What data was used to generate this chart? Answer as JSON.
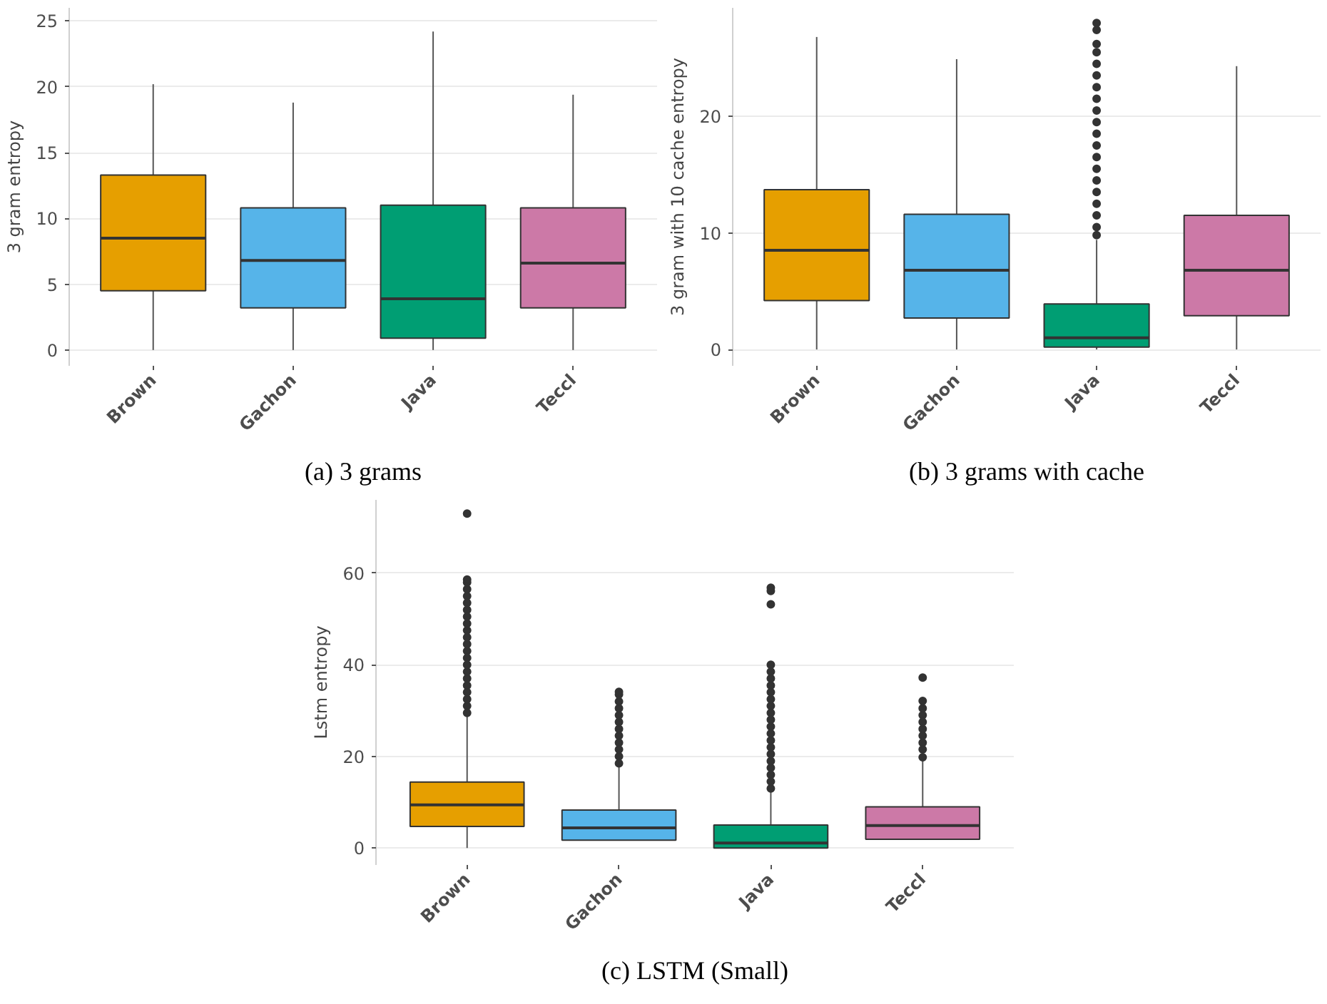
{
  "chart_data": [
    {
      "type": "box",
      "categories": [
        "Brown",
        "Gachon",
        "Java",
        "Teccl"
      ],
      "colors": [
        "#e69f00",
        "#56b4e9",
        "#009e73",
        "#cc79a7"
      ],
      "ylabel": "3 gram entropy",
      "ylim": [
        -1.2,
        26
      ],
      "yticks": [
        0,
        5,
        10,
        15,
        20,
        25
      ],
      "grid": "y",
      "annotations": [
        "(a) 3 grams"
      ],
      "boxes": [
        {
          "low": 0,
          "q1": 4.5,
          "median": 8.5,
          "q3": 13.3,
          "high": 20.2
        },
        {
          "low": 0,
          "q1": 3.2,
          "median": 6.8,
          "q3": 10.8,
          "high": 18.8
        },
        {
          "low": 0,
          "q1": 0.9,
          "median": 3.9,
          "q3": 11.0,
          "high": 24.2
        },
        {
          "low": 0,
          "q1": 3.2,
          "median": 6.6,
          "q3": 10.8,
          "high": 19.4
        }
      ]
    },
    {
      "type": "box",
      "categories": [
        "Brown",
        "Gachon",
        "Java",
        "Teccl"
      ],
      "colors": [
        "#e69f00",
        "#56b4e9",
        "#009e73",
        "#cc79a7"
      ],
      "ylabel": "3 gram with 10 cache entropy",
      "ylim": [
        -1.4,
        29.3
      ],
      "yticks": [
        0,
        10,
        20
      ],
      "grid": "y",
      "annotations": [
        "(b) 3 grams with cache"
      ],
      "boxes": [
        {
          "low": 0,
          "q1": 4.2,
          "median": 8.5,
          "q3": 13.7,
          "high": 26.8
        },
        {
          "low": 0,
          "q1": 2.7,
          "median": 6.8,
          "q3": 11.6,
          "high": 24.9
        },
        {
          "low": 0,
          "q1": 0.2,
          "median": 1.0,
          "q3": 3.9,
          "high": 9.4,
          "outliers": [
            9.8,
            10.5,
            11.5,
            12.5,
            13.5,
            14.5,
            15.5,
            16.5,
            17.5,
            18.5,
            19.5,
            20.5,
            21.5,
            22.5,
            23.5,
            24.5,
            25.5,
            26.2,
            27.4,
            28.0
          ]
        },
        {
          "low": 0,
          "q1": 2.9,
          "median": 6.8,
          "q3": 11.5,
          "high": 24.3
        }
      ]
    },
    {
      "type": "box",
      "categories": [
        "Brown",
        "Gachon",
        "Java",
        "Teccl"
      ],
      "colors": [
        "#e69f00",
        "#56b4e9",
        "#009e73",
        "#cc79a7"
      ],
      "ylabel": "Lstm entropy",
      "ylim": [
        -3.7,
        76
      ],
      "yticks": [
        0,
        20,
        40,
        60
      ],
      "grid": "y",
      "annotations": [
        "(c) LSTM (Small)"
      ],
      "boxes": [
        {
          "low": 0,
          "q1": 4.7,
          "median": 9.4,
          "q3": 14.4,
          "high": 29.1,
          "outliers": [
            29.5,
            31,
            32.5,
            34,
            35.5,
            37,
            38.5,
            40,
            41.5,
            43,
            44.5,
            46,
            47.5,
            49,
            50.5,
            52,
            53.5,
            55,
            56.5,
            58,
            58.6,
            73
          ]
        },
        {
          "low": 1.7,
          "q1": 1.7,
          "median": 4.4,
          "q3": 8.3,
          "high": 18,
          "outliers": [
            18.5,
            20,
            21.5,
            23,
            24.5,
            26,
            27.5,
            29,
            30.5,
            32,
            33.5,
            34.1
          ]
        },
        {
          "low": 0,
          "q1": 0,
          "median": 1.1,
          "q3": 5,
          "high": 12.8,
          "outliers": [
            13,
            14.5,
            16,
            17.5,
            19,
            20.5,
            22,
            23.5,
            25,
            26.5,
            28,
            29.5,
            31,
            32.5,
            34,
            35.5,
            37,
            38.5,
            40,
            53.2,
            56.1,
            56.8
          ]
        },
        {
          "low": 1.9,
          "q1": 1.9,
          "median": 4.9,
          "q3": 9,
          "high": 19.4,
          "outliers": [
            19.8,
            21.5,
            23,
            24.5,
            26,
            27.5,
            29,
            30.5,
            32.1,
            37.2
          ]
        }
      ]
    }
  ]
}
